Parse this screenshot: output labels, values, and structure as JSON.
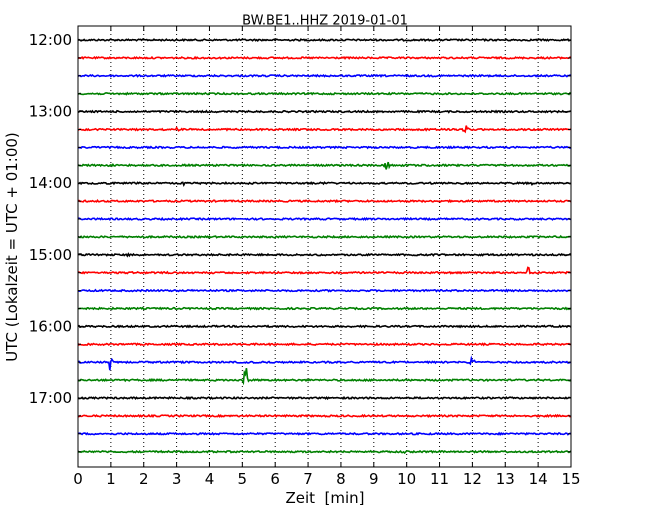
{
  "chart_data": {
    "type": "line",
    "chart_kind": "dayplot",
    "title": "BW.BE1..HHZ 2019-01-01",
    "xlabel": "Zeit  [min]",
    "ylabel": "UTC (Lokalzeit = UTC + 01:00)",
    "xlim": [
      0,
      15
    ],
    "x_ticks": [
      0,
      1,
      2,
      3,
      4,
      5,
      6,
      7,
      8,
      9,
      10,
      11,
      12,
      13,
      14,
      15
    ],
    "x_tick_labels": [
      "0",
      "1",
      "2",
      "3",
      "4",
      "5",
      "6",
      "7",
      "8",
      "9",
      "10",
      "11",
      "12",
      "13",
      "14",
      "15"
    ],
    "y_tick_labels": [
      "12:00",
      "13:00",
      "14:00",
      "15:00",
      "16:00",
      "17:00"
    ],
    "grid": {
      "x": true,
      "style": "dotted"
    },
    "colors": [
      "#000000",
      "#ff0000",
      "#0000ff",
      "#008000"
    ],
    "traces": [
      {
        "start": "12:00",
        "events": []
      },
      {
        "start": "12:15",
        "events": []
      },
      {
        "start": "12:30",
        "events": []
      },
      {
        "start": "12:45",
        "events": []
      },
      {
        "start": "13:00",
        "events": []
      },
      {
        "start": "13:15",
        "events": [
          {
            "minute": 3.0,
            "amplitude": 0.2
          },
          {
            "minute": 11.8,
            "amplitude": 0.45
          }
        ]
      },
      {
        "start": "13:30",
        "events": []
      },
      {
        "start": "13:45",
        "events": [
          {
            "minute": 1.0,
            "amplitude": 0.15
          },
          {
            "minute": 9.4,
            "amplitude": 0.65
          }
        ]
      },
      {
        "start": "14:00",
        "events": [
          {
            "minute": 3.2,
            "amplitude": 0.3
          },
          {
            "minute": 7.4,
            "amplitude": 0.15
          },
          {
            "minute": 13.8,
            "amplitude": 0.15
          }
        ]
      },
      {
        "start": "14:15",
        "events": []
      },
      {
        "start": "14:30",
        "events": []
      },
      {
        "start": "14:45",
        "events": []
      },
      {
        "start": "15:00",
        "events": [
          {
            "minute": 1.5,
            "amplitude": 0.2
          },
          {
            "minute": 8.1,
            "amplitude": 0.12
          }
        ]
      },
      {
        "start": "15:15",
        "events": [
          {
            "minute": 13.7,
            "amplitude": 0.55
          }
        ]
      },
      {
        "start": "15:30",
        "events": []
      },
      {
        "start": "15:45",
        "events": []
      },
      {
        "start": "16:00",
        "events": []
      },
      {
        "start": "16:15",
        "events": []
      },
      {
        "start": "16:30",
        "events": [
          {
            "minute": 1.0,
            "amplitude": 1.0
          },
          {
            "minute": 12.0,
            "amplitude": 0.85
          }
        ]
      },
      {
        "start": "16:45",
        "events": [
          {
            "minute": 5.1,
            "amplitude": 1.55
          }
        ]
      },
      {
        "start": "17:00",
        "events": []
      },
      {
        "start": "17:15",
        "events": []
      },
      {
        "start": "17:30",
        "events": []
      },
      {
        "start": "17:45",
        "events": [
          {
            "minute": 9.9,
            "amplitude": 0.12
          }
        ]
      }
    ]
  }
}
